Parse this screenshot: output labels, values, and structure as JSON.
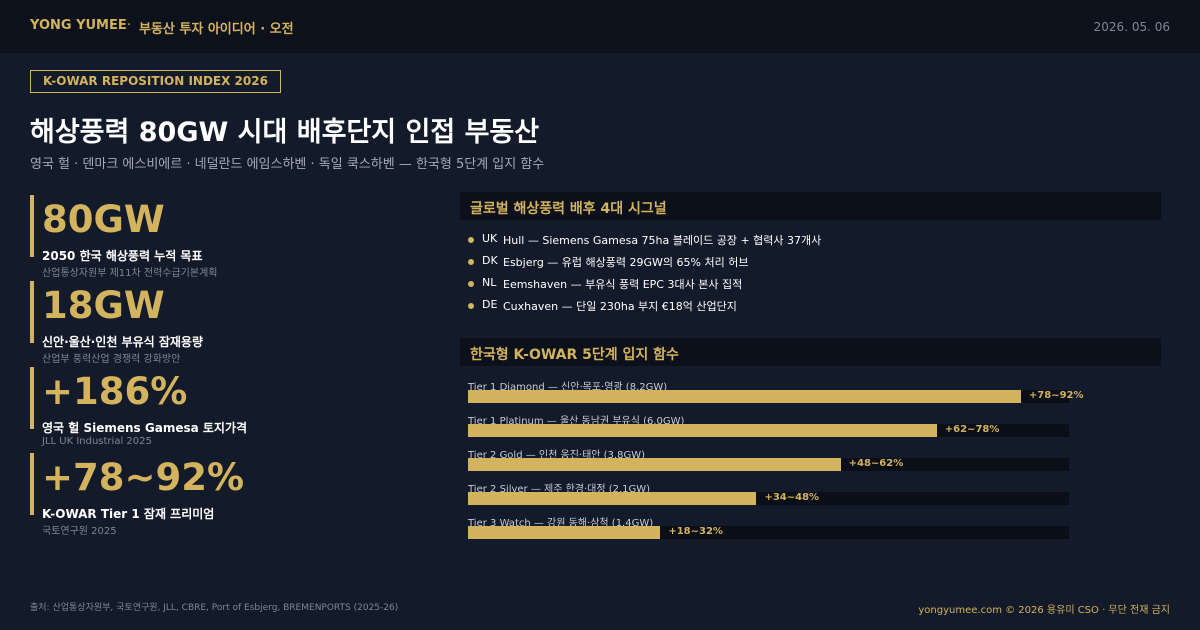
{
  "header": {
    "brand": "YONG YUMEE",
    "separator": "·",
    "section": "부동산 투자 아이디어 · 오전",
    "date": "2026. 05. 06"
  },
  "badge": "K-OWAR REPOSITION INDEX 2026",
  "title": "해상풍력 80GW 시대 배후단지 인접 부동산",
  "subtitle": "영국 헐 · 덴마크 에스비에르 · 네덜란드 에임스하벤 · 독일 쿡스하벤 — 한국형 5단계 입지 함수",
  "stats": [
    {
      "value": "80GW",
      "label": "2050 한국 해상풍력 누적 목표",
      "source": "산업통상자원부 제11차 전력수급기본계획"
    },
    {
      "value": "18GW",
      "label": "신안·울산·인천 부유식 잠재용량",
      "source": "산업부 풍력산업 경쟁력 강화방안"
    },
    {
      "value": "+186%",
      "label": "영국 헐 Siemens Gamesa 토지가격",
      "source": "JLL UK Industrial 2025"
    },
    {
      "value": "+78~92%",
      "label": "K-OWAR Tier 1 잠재 프리미엄",
      "source": "국토연구원 2025"
    }
  ],
  "signals": {
    "title": "글로벌 해상풍력 배후 4대 시그널",
    "items": [
      {
        "code": "UK",
        "text": "Hull — Siemens Gamesa 75ha 블레이드 공장 + 협력사 37개사"
      },
      {
        "code": "DK",
        "text": "Esbjerg — 유럽 해상풍력 29GW의 65% 처리 허브"
      },
      {
        "code": "NL",
        "text": "Eemshaven — 부유식 풍력 EPC 3대사 본사 집적"
      },
      {
        "code": "DE",
        "text": "Cuxhaven — 단일 230ha 부지 €18억 산업단지"
      }
    ]
  },
  "chart_data": {
    "type": "bar",
    "title": "한국형 K-OWAR 5단계 입지 함수",
    "categories": [
      "Tier 1 Diamond — 신안·목포·영광 (8.2GW)",
      "Tier 1 Platinum — 울산 동남권 부유식 (6.0GW)",
      "Tier 2 Gold — 인천 옹진·태안 (3.8GW)",
      "Tier 2 Silver — 제주 한경·대정 (2.1GW)",
      "Tier 3 Watch — 강원 동해·삼척 (1.4GW)"
    ],
    "values": [
      92,
      78,
      62,
      48,
      32
    ],
    "value_labels": [
      "+78~92%",
      "+62~78%",
      "+48~62%",
      "+34~48%",
      "+18~32%"
    ],
    "xlim": [
      0,
      100
    ],
    "color": "#d4b35f"
  },
  "footer": {
    "source": "출처: 산업통상자원부, 국토연구원, JLL, CBRE, Port of Esbjerg, BREMENPORTS (2025-26)",
    "copyright": "yongyumee.com  ©  2026 용유미 CSO  ·  무단 전재 금지"
  }
}
